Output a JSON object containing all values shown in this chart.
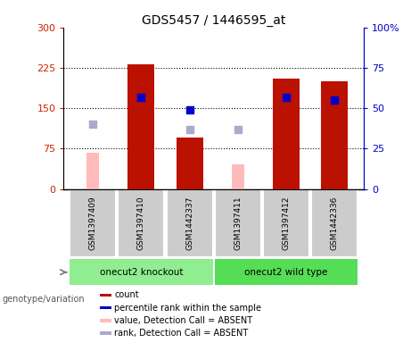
{
  "title": "GDS5457 / 1446595_at",
  "samples": [
    "GSM1397409",
    "GSM1397410",
    "GSM1442337",
    "GSM1397411",
    "GSM1397412",
    "GSM1442336"
  ],
  "groups": [
    {
      "label": "onecut2 knockout",
      "indices": [
        0,
        1,
        2
      ],
      "color": "#90EE90"
    },
    {
      "label": "onecut2 wild type",
      "indices": [
        3,
        4,
        5
      ],
      "color": "#55DD55"
    }
  ],
  "bar_values": [
    null,
    233,
    95,
    null,
    205,
    200
  ],
  "bar_color": "#BB1100",
  "pink_bar_values": [
    67,
    null,
    null,
    45,
    null,
    null
  ],
  "pink_bar_color": "#FFBBBB",
  "blue_dot_values": [
    null,
    170,
    148,
    null,
    170,
    165
  ],
  "blue_dot_color": "#0000CC",
  "lavender_dot_values": [
    120,
    null,
    110,
    110,
    null,
    null
  ],
  "lavender_dot_color": "#AAAACC",
  "ylim_left": [
    0,
    300
  ],
  "ylim_right": [
    0,
    100
  ],
  "yticks_left": [
    0,
    75,
    150,
    225,
    300
  ],
  "yticks_right": [
    0,
    25,
    50,
    75,
    100
  ],
  "ytick_labels_left": [
    "0",
    "75",
    "150",
    "225",
    "300"
  ],
  "ytick_labels_right": [
    "0",
    "25",
    "50",
    "75",
    "100%"
  ],
  "left_axis_color": "#CC2200",
  "right_axis_color": "#0000CC",
  "genotype_label": "genotype/variation",
  "legend_items": [
    {
      "color": "#BB1100",
      "label": "count"
    },
    {
      "color": "#0000CC",
      "label": "percentile rank within the sample"
    },
    {
      "color": "#FFBBBB",
      "label": "value, Detection Call = ABSENT"
    },
    {
      "color": "#AAAACC",
      "label": "rank, Detection Call = ABSENT"
    }
  ],
  "bar_width": 0.55,
  "pink_bar_width": 0.25,
  "dot_size": 30
}
